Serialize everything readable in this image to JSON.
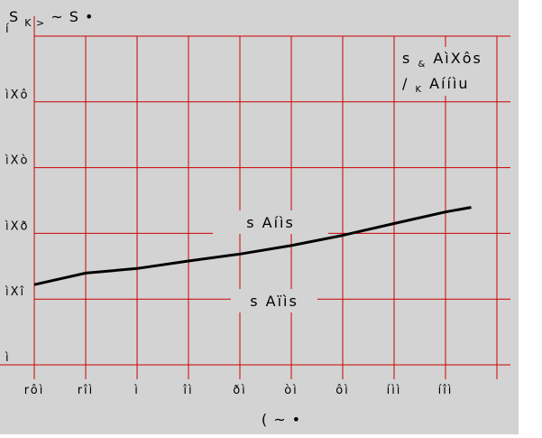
{
  "chart_data": {
    "type": "line",
    "title": "",
    "ylabel": "S",
    "ylabel_subscript": "K >",
    "ylabel_suffix": "~ S •",
    "xlabel": "( ~ •",
    "x_tick_labels": [
      "rôì",
      "rîì",
      "ì",
      "îì",
      "ðì",
      "òì",
      "ôì",
      "íìì",
      "íîì"
    ],
    "y_tick_labels": [
      "ì",
      "ìXî",
      "ìXð",
      "ìXò",
      "ìXô",
      "í"
    ],
    "xlim": [
      -60,
      120
    ],
    "ylim": [
      0,
      1
    ],
    "grid": true,
    "background_color": "#d3d3d3",
    "grid_color": "#cc0000",
    "line_color": "#000000",
    "series": [
      {
        "x": [
          -60,
          -40,
          -20,
          0,
          20,
          40,
          60,
          80,
          100,
          110
        ],
        "y": [
          0.244,
          0.279,
          0.293,
          0.316,
          0.337,
          0.363,
          0.394,
          0.43,
          0.465,
          0.479
        ]
      }
    ],
    "annotations": {
      "label_upper": "s Aíìs",
      "label_lower": "s Aïìs",
      "corner_line1_main": "s",
      "corner_line1_sub": "&",
      "corner_line1_rest": "AìXôs",
      "corner_line2_main": "/",
      "corner_line2_sub": "K",
      "corner_line2_rest": "Aííìu"
    }
  }
}
